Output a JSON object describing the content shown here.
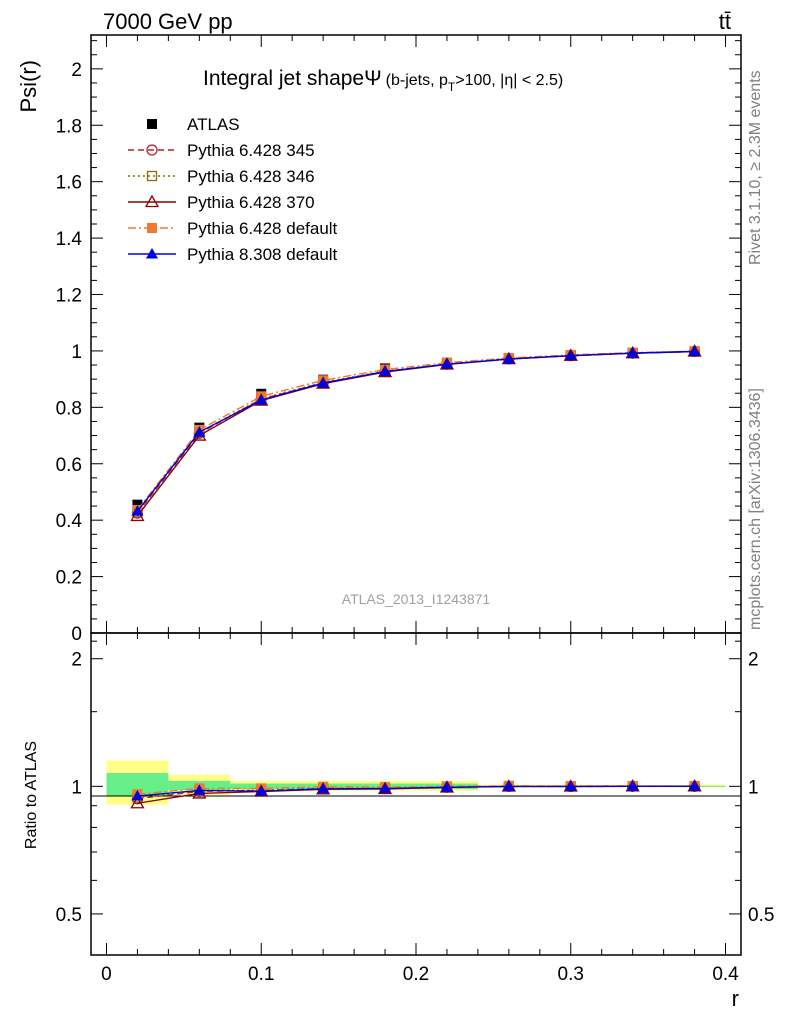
{
  "header": {
    "left": "7000 GeV pp",
    "right": "tt̄"
  },
  "side_text": {
    "rivet": "Rivet 3.1.10, ≥ 2.3M events",
    "mcplots": "mcplots.cern.ch [arXiv:1306.3436]"
  },
  "chart_data": [
    {
      "type": "line",
      "title": "Integral jet shape",
      "title_symbol": "Ψ",
      "title_detail": "(b-jets, p",
      "title_detail_sub": "T",
      "title_detail_tail": ">100, |η| < 2.5)",
      "ylabel": "Psi(r)",
      "watermark": "ATLAS_2013_I1243871",
      "xlim": [
        -0.01,
        0.41
      ],
      "ylim": [
        0,
        2.12
      ],
      "y_ticks": [
        "0",
        "0.2",
        "0.4",
        "0.6",
        "0.8",
        "1",
        "1.2",
        "1.4",
        "1.6",
        "1.8",
        "2"
      ],
      "x": [
        0.02,
        0.06,
        0.1,
        0.14,
        0.18,
        0.22,
        0.26,
        0.3,
        0.34,
        0.38
      ],
      "series": [
        {
          "name": "ATLAS",
          "color": "#000000",
          "marker": "square-filled",
          "values": [
            0.455,
            0.728,
            0.848,
            0.898,
            0.938,
            0.958,
            0.972,
            0.984,
            0.992,
            0.998
          ]
        },
        {
          "name": "Pythia 6.428 345",
          "color": "#b22222",
          "marker": "circle-open",
          "dash": "dashed",
          "values": [
            0.425,
            0.708,
            0.829,
            0.887,
            0.927,
            0.953,
            0.972,
            0.983,
            0.992,
            0.998
          ]
        },
        {
          "name": "Pythia 6.428 346",
          "color": "#8b6914",
          "marker": "square-open",
          "dash": "dotted",
          "values": [
            0.428,
            0.711,
            0.831,
            0.889,
            0.928,
            0.954,
            0.973,
            0.984,
            0.993,
            0.998
          ]
        },
        {
          "name": "Pythia 6.428 370",
          "color": "#8b0000",
          "marker": "triangle-open",
          "dash": "solid",
          "values": [
            0.415,
            0.7,
            0.824,
            0.884,
            0.925,
            0.952,
            0.971,
            0.983,
            0.992,
            0.998
          ]
        },
        {
          "name": "Pythia 6.428 default",
          "color": "#f07830",
          "marker": "square-filled",
          "dash": "dashdot",
          "values": [
            0.436,
            0.72,
            0.839,
            0.896,
            0.934,
            0.958,
            0.975,
            0.986,
            0.994,
            0.999
          ]
        },
        {
          "name": "Pythia 8.308 default",
          "color": "#0000dd",
          "marker": "triangle-filled",
          "dash": "solid",
          "values": [
            0.432,
            0.712,
            0.826,
            0.886,
            0.927,
            0.953,
            0.971,
            0.983,
            0.992,
            0.998
          ]
        }
      ]
    },
    {
      "type": "line",
      "xlabel": "r",
      "ylabel": "Ratio to ATLAS",
      "xlim": [
        -0.01,
        0.41
      ],
      "y_scale": "log",
      "ylim": [
        0.4,
        2.3
      ],
      "x_ticks": [
        "0",
        "0.1",
        "0.2",
        "0.3",
        "0.4"
      ],
      "y_ticks": [
        "0.5",
        "1",
        "2"
      ],
      "x": [
        0.02,
        0.06,
        0.1,
        0.14,
        0.18,
        0.22,
        0.26,
        0.3,
        0.34,
        0.38
      ],
      "bands": [
        {
          "name": "stat",
          "color": "#66ee88",
          "bins": [
            [
              0.0,
              0.04,
              0.95,
              1.075
            ],
            [
              0.04,
              0.08,
              0.98,
              1.03
            ],
            [
              0.08,
              0.24,
              0.985,
              1.015
            ],
            [
              0.24,
              0.4,
              0.997,
              1.003
            ]
          ]
        },
        {
          "name": "total",
          "color": "#ffff88",
          "bins": [
            [
              0.0,
              0.04,
              0.905,
              1.15
            ],
            [
              0.04,
              0.08,
              0.955,
              1.065
            ],
            [
              0.08,
              0.24,
              0.975,
              1.03
            ],
            [
              0.24,
              0.4,
              0.994,
              1.008
            ]
          ]
        }
      ],
      "series": [
        {
          "name": "Pythia 6.428 345",
          "color": "#b22222",
          "marker": "circle-open",
          "dash": "dashed",
          "values": [
            0.935,
            0.973,
            0.978,
            0.988,
            0.988,
            0.995,
            1.0,
            0.999,
            1.0,
            1.0
          ]
        },
        {
          "name": "Pythia 6.428 346",
          "color": "#8b6914",
          "marker": "square-open",
          "dash": "dotted",
          "values": [
            0.941,
            0.977,
            0.98,
            0.99,
            0.989,
            0.996,
            1.001,
            1.0,
            1.001,
            1.0
          ]
        },
        {
          "name": "Pythia 6.428 370",
          "color": "#8b0000",
          "marker": "triangle-open",
          "dash": "solid",
          "values": [
            0.912,
            0.962,
            0.972,
            0.984,
            0.986,
            0.994,
            0.999,
            0.999,
            1.0,
            1.0
          ]
        },
        {
          "name": "Pythia 6.428 default",
          "color": "#f07830",
          "marker": "square-filled",
          "dash": "dashdot",
          "values": [
            0.958,
            0.989,
            0.989,
            0.998,
            0.996,
            1.0,
            1.003,
            1.002,
            1.002,
            1.001
          ]
        },
        {
          "name": "Pythia 8.308 default",
          "color": "#0000dd",
          "marker": "triangle-filled",
          "dash": "solid",
          "values": [
            0.949,
            0.978,
            0.974,
            0.987,
            0.988,
            0.995,
            0.999,
            0.999,
            1.0,
            1.0
          ]
        }
      ]
    }
  ]
}
